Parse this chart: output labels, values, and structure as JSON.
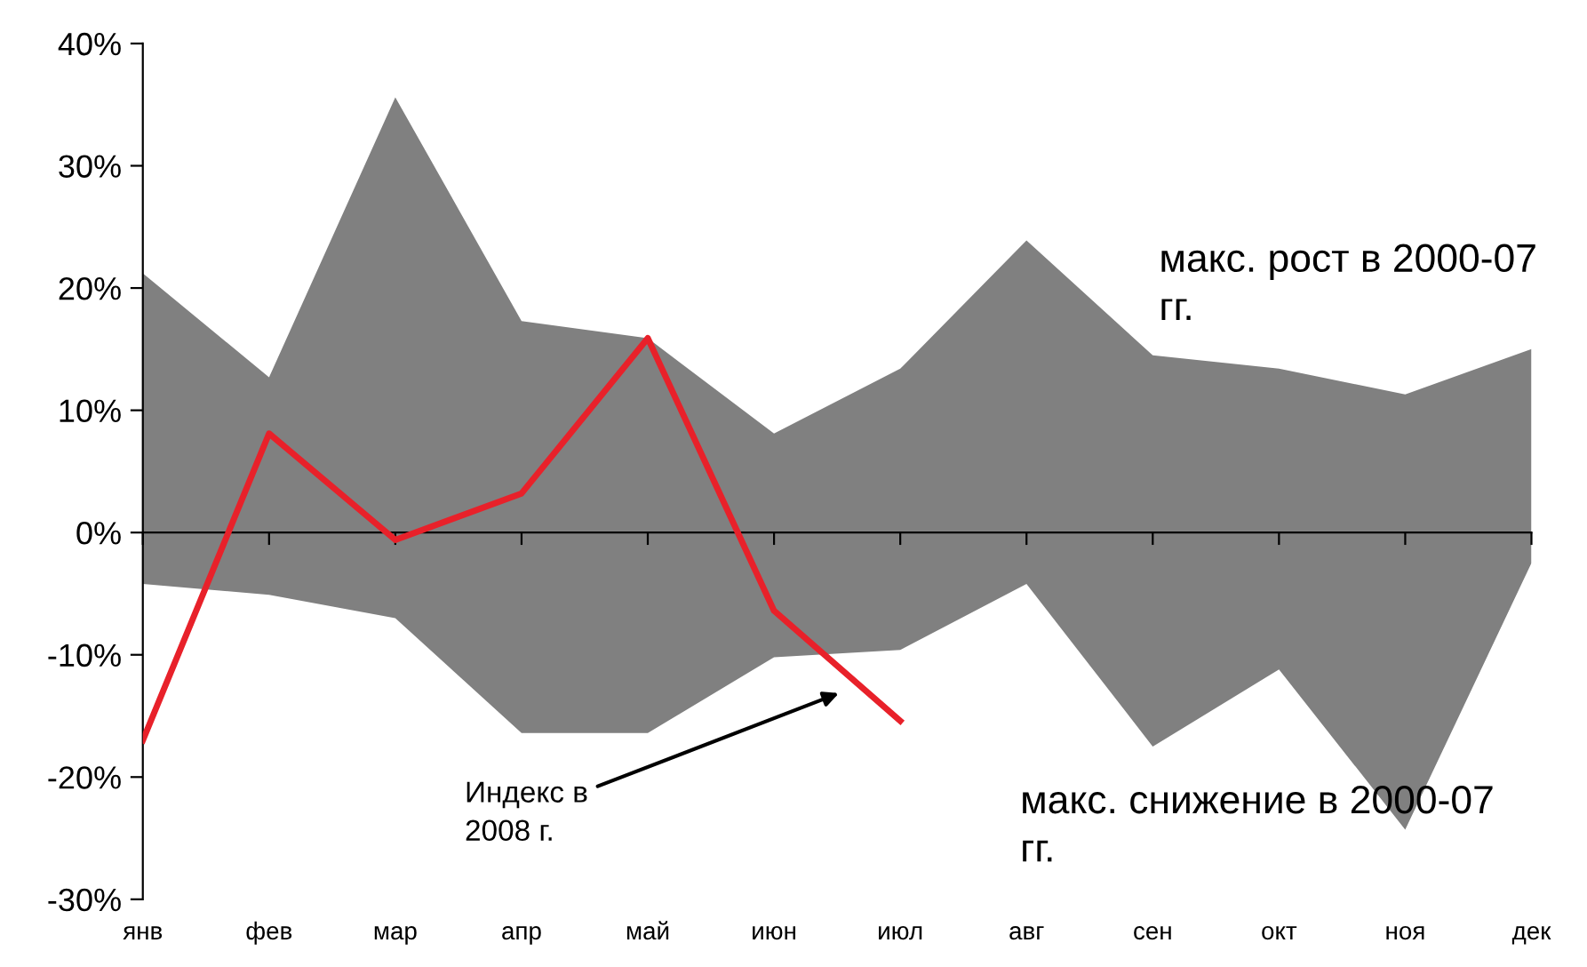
{
  "chart_data": {
    "type": "area",
    "categories": [
      "янв",
      "фев",
      "мар",
      "апр",
      "май",
      "июн",
      "июл",
      "авг",
      "сен",
      "окт",
      "ноя",
      "дек"
    ],
    "series": [
      {
        "name": "макс. рост в 2000-07 гг.",
        "color": "#808080",
        "values": [
          21.2,
          12.7,
          35.6,
          17.3,
          15.9,
          8.1,
          13.4,
          23.9,
          14.5,
          13.4,
          11.3,
          15.0
        ]
      },
      {
        "name": "макс. снижение в 2000-07 гг.",
        "color": "#808080",
        "values": [
          -4.2,
          -5.1,
          -7.0,
          -16.4,
          -16.4,
          -10.2,
          -9.6,
          -4.2,
          -17.5,
          -11.2,
          -24.3,
          -2.5
        ]
      },
      {
        "type": "line",
        "color": "#e8212a",
        "values": [
          -17.0,
          8.1,
          -0.6,
          3.2,
          15.9,
          -6.4,
          -15.4,
          null,
          null,
          null,
          null,
          null
        ]
      }
    ],
    "annotations": [
      "Индекс в 2008 г."
    ],
    "ylim": [
      -30,
      40
    ],
    "yticks": [
      {
        "value": -30,
        "label": "-30%"
      },
      {
        "value": -20,
        "label": "-20%"
      },
      {
        "value": -10,
        "label": "-10%"
      },
      {
        "value": 0,
        "label": "0%"
      },
      {
        "value": 10,
        "label": "10%"
      },
      {
        "value": 20,
        "label": "20%"
      },
      {
        "value": 30,
        "label": "30%"
      },
      {
        "value": 40,
        "label": "40%"
      }
    ],
    "legend": false
  }
}
